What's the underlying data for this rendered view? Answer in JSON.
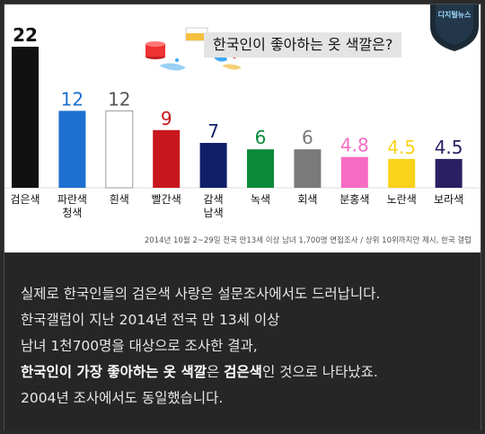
{
  "chart_data": {
    "type": "bar",
    "title": "한국인이 좋아하는 옷 색깔은?",
    "categories": [
      [
        "검은색"
      ],
      [
        "파란색",
        "청색"
      ],
      [
        "흰색"
      ],
      [
        "빨간색"
      ],
      [
        "감색",
        "남색"
      ],
      [
        "녹색"
      ],
      [
        "회색"
      ],
      [
        "분홍색"
      ],
      [
        "노란색"
      ],
      [
        "보라색"
      ]
    ],
    "values": [
      22,
      12,
      12,
      9,
      7,
      6,
      6,
      4.8,
      4.5,
      4.5
    ],
    "value_labels": [
      "22",
      "12",
      "12",
      "9",
      "7",
      "6",
      "6",
      "4.8",
      "4.5",
      "4.5"
    ],
    "bar_colors": [
      "#111111",
      "#1d6fd0",
      "#ffffff",
      "#c8161d",
      "#0f1f6a",
      "#0a8a3a",
      "#7a7a7a",
      "#f56cc2",
      "#f9d21a",
      "#2a1f63"
    ],
    "label_colors": [
      "#111111",
      "#1d6fd0",
      "#555555",
      "#c8161d",
      "#0f1f6a",
      "#0a8a3a",
      "#7a7a7a",
      "#f56cc2",
      "#f9d21a",
      "#2a1f63"
    ],
    "ylim": [
      0,
      22
    ],
    "grid": false,
    "source": "2014년 10월 2~29일 전국 만13세 이상 남녀 1,700명 면접조사 / 상위 10위까지만 제시, 한국 갤럽"
  },
  "badge_text": "디지털뉴스",
  "paragraph": {
    "line1": "실제로 한국인들의 검은색 사랑은 설문조사에서도 드러납니다.",
    "line2": "한국갤럽이 지난 2014년 전국 만 13세 이상",
    "line3": "남녀 1천700명을 대상으로 조사한 결과,",
    "line4_bold1": "한국인이 가장 좋아하는 옷 색깔",
    "line4_mid": "은 ",
    "line4_bold2": "검은색",
    "line4_end": "인 것으로 나타났죠.",
    "line5": "2004년 조사에서도 동일했습니다."
  }
}
